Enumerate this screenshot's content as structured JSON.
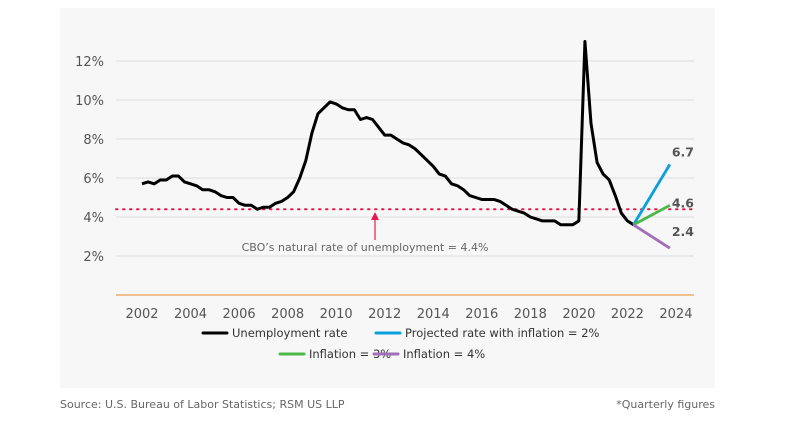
{
  "chart_data": {
    "type": "line",
    "xlabel": "",
    "ylabel": "",
    "xlim": [
      2001.5,
      2025.3
    ],
    "ylim": [
      0,
      13.5
    ],
    "x_ticks": [
      "2002",
      "2004",
      "2006",
      "2008",
      "2010",
      "2012",
      "2014",
      "2016",
      "2018",
      "2020",
      "2022",
      "2024"
    ],
    "y_ticks": [
      {
        "v": 12,
        "label": "12%"
      },
      {
        "v": 10,
        "label": "10%"
      },
      {
        "v": 8,
        "label": "8%"
      },
      {
        "v": 6,
        "label": "6%"
      },
      {
        "v": 4,
        "label": "4%"
      },
      {
        "v": 2,
        "label": "2%"
      }
    ],
    "grid": true,
    "legend_position": "bottom",
    "series": [
      {
        "name": "Unemployment rate",
        "color": "#000000",
        "x_start": 2002.0,
        "x_step": 0.25,
        "values": [
          5.7,
          5.8,
          5.7,
          5.9,
          5.9,
          6.1,
          6.1,
          5.8,
          5.7,
          5.6,
          5.4,
          5.4,
          5.3,
          5.1,
          5.0,
          5.0,
          4.7,
          4.6,
          4.6,
          4.4,
          4.5,
          4.5,
          4.7,
          4.8,
          5.0,
          5.3,
          6.0,
          6.9,
          8.3,
          9.3,
          9.6,
          9.9,
          9.8,
          9.6,
          9.5,
          9.5,
          9.0,
          9.1,
          9.0,
          8.6,
          8.2,
          8.2,
          8.0,
          7.8,
          7.7,
          7.5,
          7.2,
          6.9,
          6.6,
          6.2,
          6.1,
          5.7,
          5.6,
          5.4,
          5.1,
          5.0,
          4.9,
          4.9,
          4.9,
          4.8,
          4.6,
          4.4,
          4.3,
          4.2,
          4.0,
          3.9,
          3.8,
          3.8,
          3.8,
          3.6,
          3.6,
          3.6,
          3.8,
          13.0,
          8.8,
          6.8,
          6.2,
          5.9,
          5.1,
          4.2,
          3.8,
          3.6
        ]
      },
      {
        "name": "Projected rate with inflation = 2%",
        "color": "#0aa0dc",
        "x": [
          2022.25,
          2023.75
        ],
        "values": [
          3.6,
          6.7
        ],
        "end_label": "6.7"
      },
      {
        "name": "Inflation = 3%",
        "color": "#4cb848",
        "x": [
          2022.25,
          2023.75
        ],
        "values": [
          3.6,
          4.6
        ],
        "end_label": "4.6"
      },
      {
        "name": "Inflation = 4%",
        "color": "#a070b8",
        "x": [
          2022.25,
          2023.75
        ],
        "values": [
          3.6,
          2.4
        ],
        "end_label": "2.4"
      }
    ],
    "reference_line": {
      "value": 4.4,
      "color": "#e8184a",
      "style": "dotted",
      "annotation": "CBO’s natural rate of unemployment = 4.4%",
      "annotation_x": 2011.6
    },
    "baseline_color": "#f0a050"
  },
  "footer": {
    "source": "Source: U.S. Bureau of Labor Statistics; RSM US LLP",
    "note": "*Quarterly figures"
  }
}
